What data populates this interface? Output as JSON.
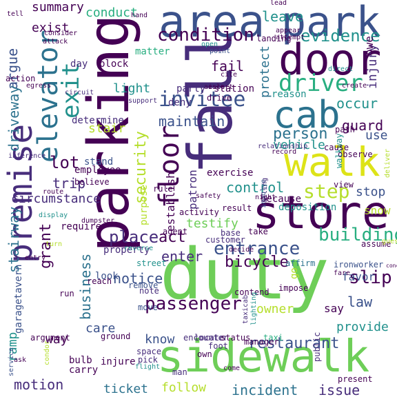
{
  "words": [
    {
      "t": "parking",
      "c": "#440154",
      "v": 1
    },
    {
      "t": "fall",
      "c": "#472d7b",
      "v": 1
    },
    {
      "t": "duty",
      "c": "#6ece58",
      "v": 0
    },
    {
      "t": "sidewalk",
      "c": "#6ece58",
      "v": 0
    },
    {
      "t": "store",
      "c": "#440154",
      "v": 0
    },
    {
      "t": "door",
      "c": "#440154",
      "v": 0
    },
    {
      "t": "area",
      "c": "#3b528b",
      "v": 0
    },
    {
      "t": "park",
      "c": "#3b528b",
      "v": 0
    },
    {
      "t": "walk",
      "c": "#dde318",
      "v": 0
    },
    {
      "t": "cab",
      "c": "#2c728e",
      "v": 0
    },
    {
      "t": "premise",
      "c": "#472d7b",
      "v": 1
    },
    {
      "t": "elevator",
      "c": "#2c728e",
      "v": 1
    },
    {
      "t": "exit",
      "c": "#21918c",
      "v": 1
    },
    {
      "t": "floor",
      "c": "#440154",
      "v": 1
    },
    {
      "t": "driver",
      "c": "#28ae80",
      "v": 0
    },
    {
      "t": "invitee",
      "c": "#3b528b",
      "v": 0
    },
    {
      "t": "condition",
      "c": "#440154",
      "v": 0
    },
    {
      "t": "evidence",
      "c": "#21918c",
      "v": 0
    },
    {
      "t": "passenger",
      "c": "#440154",
      "v": 0
    },
    {
      "t": "building",
      "c": "#28ae80",
      "v": 0
    },
    {
      "t": "entrance",
      "c": "#3b528b",
      "v": 0
    },
    {
      "t": "restaurant",
      "c": "#3b528b",
      "v": 0
    },
    {
      "t": "incident",
      "c": "#2c728e",
      "v": 0
    },
    {
      "t": "issue",
      "c": "#472d7b",
      "v": 0
    },
    {
      "t": "motion",
      "c": "#472d7b",
      "v": 0
    },
    {
      "t": "ticket",
      "c": "#2c728e",
      "v": 0
    },
    {
      "t": "follow",
      "c": "#b5de2b",
      "v": 0
    },
    {
      "t": "step",
      "c": "#b5de2b",
      "v": 0
    },
    {
      "t": "person",
      "c": "#2c728e",
      "v": 0
    },
    {
      "t": "control",
      "c": "#21918c",
      "v": 0
    },
    {
      "t": "security",
      "c": "#b5de2b",
      "v": 1
    },
    {
      "t": "place",
      "c": "#472d7b",
      "v": 0
    },
    {
      "t": "act",
      "c": "#440154",
      "v": 0
    },
    {
      "t": "enter",
      "c": "#472d7b",
      "v": 0
    },
    {
      "t": "bicycle",
      "c": "#440154",
      "v": 0
    },
    {
      "t": "notice",
      "c": "#3b528b",
      "v": 0
    },
    {
      "t": "business",
      "c": "#2c728e",
      "v": 1
    },
    {
      "t": "testify",
      "c": "#6ece58",
      "v": 0
    },
    {
      "t": "slip",
      "c": "#440154",
      "v": 0
    },
    {
      "t": "law",
      "c": "#3b528b",
      "v": 0
    },
    {
      "t": "owner",
      "c": "#b5de2b",
      "v": 0
    },
    {
      "t": "provide",
      "c": "#21918c",
      "v": 0
    },
    {
      "t": "stop",
      "c": "#3b528b",
      "v": 0
    },
    {
      "t": "maintain",
      "c": "#3b528b",
      "v": 0
    },
    {
      "t": "guard",
      "c": "#440154",
      "v": 0
    },
    {
      "t": "occur",
      "c": "#21918c",
      "v": 0
    },
    {
      "t": "vehicle",
      "c": "#21918c",
      "v": 0
    },
    {
      "t": "light",
      "c": "#21918c",
      "v": 0
    },
    {
      "t": "stair",
      "c": "#b5de2b",
      "v": 0
    },
    {
      "t": "lot",
      "c": "#440154",
      "v": 0
    },
    {
      "t": "trip",
      "c": "#472d7b",
      "v": 0
    },
    {
      "t": "fail",
      "c": "#440154",
      "v": 0
    },
    {
      "t": "leave",
      "c": "#21918c",
      "v": 0
    },
    {
      "t": "summary",
      "c": "#440154",
      "v": 0
    },
    {
      "t": "conduct",
      "c": "#28ae80",
      "v": 0
    },
    {
      "t": "exist",
      "c": "#440154",
      "v": 0
    },
    {
      "t": "argue",
      "c": "#3b528b",
      "v": 1
    },
    {
      "t": "driveway",
      "c": "#2c728e",
      "v": 1
    },
    {
      "t": "stairway",
      "c": "#2c728e",
      "v": 1
    },
    {
      "t": "circumstance",
      "c": "#472d7b",
      "v": 0
    },
    {
      "t": "ramp",
      "c": "#21918c",
      "v": 1
    },
    {
      "t": "tavern",
      "c": "#3b528b",
      "v": 1
    },
    {
      "t": "garage",
      "c": "#3b528b",
      "v": 1
    },
    {
      "t": "grant",
      "c": "#440154",
      "v": 1
    },
    {
      "t": "way",
      "c": "#440154",
      "v": 0
    },
    {
      "t": "care",
      "c": "#3b528b",
      "v": 0
    },
    {
      "t": "know",
      "c": "#3b528b",
      "v": 0
    },
    {
      "t": "protect",
      "c": "#2c728e",
      "v": 1
    },
    {
      "t": "injury",
      "c": "#472d7b",
      "v": 1
    },
    {
      "t": "owe",
      "c": "#440154",
      "v": 1
    },
    {
      "t": "use",
      "c": "#3b528b",
      "v": 0
    },
    {
      "t": "snow",
      "c": "#b5de2b",
      "v": 0
    },
    {
      "t": "go",
      "c": "#b5de2b",
      "v": 1
    },
    {
      "t": "say",
      "c": "#440154",
      "v": 0
    },
    {
      "t": "favor",
      "c": "#3b528b",
      "v": 0
    },
    {
      "t": "because",
      "c": "#440154",
      "v": 0
    },
    {
      "t": "deposition",
      "c": "#21918c",
      "v": 0
    },
    {
      "t": "require",
      "c": "#440154",
      "v": 0
    },
    {
      "t": "employee",
      "c": "#440154",
      "v": 0
    },
    {
      "t": "stand",
      "c": "#3b528b",
      "v": 0
    },
    {
      "t": "believe",
      "c": "#440154",
      "v": 0
    },
    {
      "t": "determine",
      "c": "#472d7b",
      "v": 0
    },
    {
      "t": "exercise",
      "c": "#440154",
      "v": 0
    },
    {
      "t": "patron",
      "c": "#472d7b",
      "v": 1
    },
    {
      "t": "establish",
      "c": "#440154",
      "v": 1
    },
    {
      "t": "party",
      "c": "#472d7b",
      "v": 0
    },
    {
      "t": "station",
      "c": "#440154",
      "v": 0
    },
    {
      "t": "deny",
      "c": "#472d7b",
      "v": 0
    },
    {
      "t": "block",
      "c": "#440154",
      "v": 0
    },
    {
      "t": "day",
      "c": "#472d7b",
      "v": 0
    },
    {
      "t": "matter",
      "c": "#28ae80",
      "v": 0
    },
    {
      "t": "reason",
      "c": "#21918c",
      "v": 0
    },
    {
      "t": "landing",
      "c": "#440154",
      "v": 0
    },
    {
      "t": "purpose",
      "c": "#b5de2b",
      "v": 1
    },
    {
      "t": "rule",
      "c": "#440154",
      "v": 0
    },
    {
      "t": "activity",
      "c": "#440154",
      "v": 0
    },
    {
      "t": "result",
      "c": "#440154",
      "v": 0
    },
    {
      "t": "customer",
      "c": "#472d7b",
      "v": 0
    },
    {
      "t": "take",
      "c": "#440154",
      "v": 0
    },
    {
      "t": "base",
      "c": "#472d7b",
      "v": 0
    },
    {
      "t": "property",
      "c": "#472d7b",
      "v": 0
    },
    {
      "t": "street",
      "c": "#21918c",
      "v": 0
    },
    {
      "t": "look",
      "c": "#3b528b",
      "v": 0
    },
    {
      "t": "remove",
      "c": "#3b528b",
      "v": 0
    },
    {
      "t": "reach",
      "c": "#440154",
      "v": 0
    },
    {
      "t": "note",
      "c": "#472d7b",
      "v": 0
    },
    {
      "t": "move",
      "c": "#3b528b",
      "v": 0
    },
    {
      "t": "ground",
      "c": "#440154",
      "v": 0
    },
    {
      "t": "bulb",
      "c": "#440154",
      "v": 0
    },
    {
      "t": "carry",
      "c": "#440154",
      "v": 0
    },
    {
      "t": "injure",
      "c": "#440154",
      "v": 0
    },
    {
      "t": "pick",
      "c": "#472d7b",
      "v": 0
    },
    {
      "t": "space",
      "c": "#472d7b",
      "v": 0
    },
    {
      "t": "flight",
      "c": "#21918c",
      "v": 0
    },
    {
      "t": "encounter",
      "c": "#472d7b",
      "v": 0
    },
    {
      "t": "foot",
      "c": "#472d7b",
      "v": 0
    },
    {
      "t": "own",
      "c": "#440154",
      "v": 0
    },
    {
      "t": "locate",
      "c": "#472d7b",
      "v": 0
    },
    {
      "t": "status",
      "c": "#440154",
      "v": 0
    },
    {
      "t": "taxi",
      "c": "#28ae80",
      "v": 0
    },
    {
      "t": "man",
      "c": "#472d7b",
      "v": 0
    },
    {
      "t": "come",
      "c": "#440154",
      "v": 0
    },
    {
      "t": "contend",
      "c": "#440154",
      "v": 0
    },
    {
      "t": "impose",
      "c": "#440154",
      "v": 0
    },
    {
      "t": "manager",
      "c": "#440154",
      "v": 0
    },
    {
      "t": "taxicab",
      "c": "#472d7b",
      "v": 1
    },
    {
      "t": "lighting",
      "c": "#21918c",
      "v": 1
    },
    {
      "t": "public",
      "c": "#472d7b",
      "v": 1
    },
    {
      "t": "present",
      "c": "#440154",
      "v": 0
    },
    {
      "t": "affirm",
      "c": "#2c728e",
      "v": 0
    },
    {
      "t": "ironworker",
      "c": "#3b528b",
      "v": 0
    },
    {
      "t": "fare",
      "c": "#440154",
      "v": 0
    },
    {
      "t": "assume",
      "c": "#440154",
      "v": 0
    },
    {
      "t": "guest",
      "c": "#b5de2b",
      "v": 0
    },
    {
      "t": "view",
      "c": "#440154",
      "v": 0
    },
    {
      "t": "deliver",
      "c": "#b5de2b",
      "v": 1
    },
    {
      "t": "observe",
      "c": "#440154",
      "v": 0
    },
    {
      "t": "walkway",
      "c": "#21918c",
      "v": 1
    },
    {
      "t": "path",
      "c": "#440154",
      "v": 0
    },
    {
      "t": "cause",
      "c": "#440154",
      "v": 0
    },
    {
      "t": "create",
      "c": "#440154",
      "v": 0
    },
    {
      "t": "direct",
      "c": "#21918c",
      "v": 0
    },
    {
      "t": "relationship",
      "c": "#472d7b",
      "v": 0
    },
    {
      "t": "record",
      "c": "#440154",
      "v": 0
    },
    {
      "t": "railing",
      "c": "#472d7b",
      "v": 1
    },
    {
      "t": "involve",
      "c": "#3b528b",
      "v": 1
    },
    {
      "t": "night",
      "c": "#440154",
      "v": 0
    },
    {
      "t": "drive",
      "c": "#440154",
      "v": 0
    },
    {
      "t": "escort",
      "c": "#440154",
      "v": 0
    },
    {
      "t": "aisle",
      "c": "#440154",
      "v": 0
    },
    {
      "t": "cite",
      "c": "#440154",
      "v": 0
    },
    {
      "t": "point",
      "c": "#3b528b",
      "v": 0
    },
    {
      "t": "open",
      "c": "#21918c",
      "v": 0
    },
    {
      "t": "attempt",
      "c": "#440154",
      "v": 0
    },
    {
      "t": "appear",
      "c": "#440154",
      "v": 0
    },
    {
      "t": "lead",
      "c": "#440154",
      "v": 0
    },
    {
      "t": "tell",
      "c": "#440154",
      "v": 0
    },
    {
      "t": "hand",
      "c": "#440154",
      "v": 0
    },
    {
      "t": "consider",
      "c": "#440154",
      "v": 0
    },
    {
      "t": "attack",
      "c": "#440154",
      "v": 0
    },
    {
      "t": "circuit",
      "c": "#472d7b",
      "v": 0
    },
    {
      "t": "action",
      "c": "#440154",
      "v": 0
    },
    {
      "t": "egress",
      "c": "#440154",
      "v": 0
    },
    {
      "t": "support",
      "c": "#472d7b",
      "v": 0
    },
    {
      "t": "inference",
      "c": "#472d7b",
      "v": 0
    },
    {
      "t": "display",
      "c": "#21918c",
      "v": 0
    },
    {
      "t": "route",
      "c": "#440154",
      "v": 0
    },
    {
      "t": "turn",
      "c": "#b5de2b",
      "v": 0
    },
    {
      "t": "dumpster",
      "c": "#440154",
      "v": 0
    },
    {
      "t": "entry",
      "c": "#440154",
      "v": 0
    },
    {
      "t": "reverse",
      "c": "#21918c",
      "v": 0
    },
    {
      "t": "agent",
      "c": "#440154",
      "v": 0
    },
    {
      "t": "run",
      "c": "#440154",
      "v": 0
    },
    {
      "t": "argument",
      "c": "#440154",
      "v": 0
    },
    {
      "t": "condor",
      "c": "#b5de2b",
      "v": 1
    },
    {
      "t": "service",
      "c": "#3b528b",
      "v": 1
    },
    {
      "t": "ask",
      "c": "#440154",
      "v": 0
    },
    {
      "t": "safety",
      "c": "#440154",
      "v": 0
    },
    {
      "t": "decide",
      "c": "#440154",
      "v": 0
    },
    {
      "t": "conclude",
      "c": "#440154",
      "v": 0
    },
    {
      "t": "indicate",
      "c": "#440154",
      "v": 1
    },
    {
      "t": "ride",
      "c": "#440154",
      "v": 0
    },
    {
      "t": "danger",
      "c": "#440154",
      "v": 0
    }
  ]
}
